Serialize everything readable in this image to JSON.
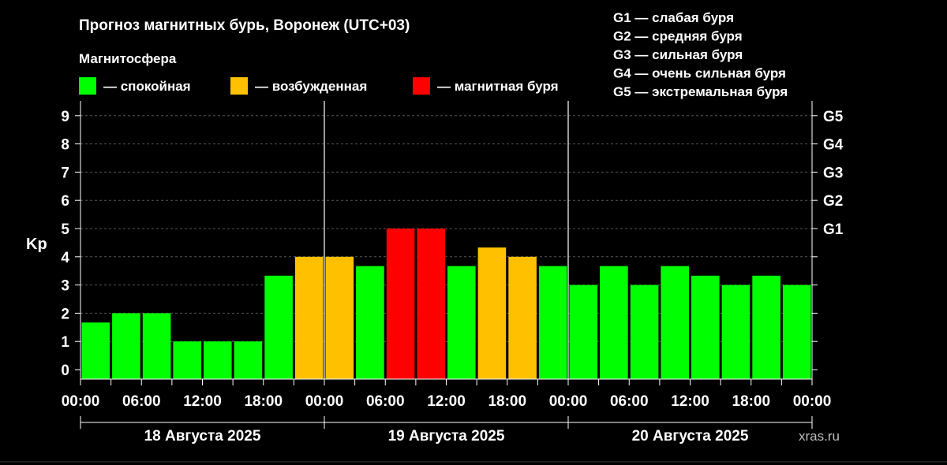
{
  "colors": {
    "quiet": "#00ff00",
    "active": "#ffc000",
    "storm": "#ff0000",
    "background": "#000000",
    "text": "#ffffff",
    "grid": "#555555"
  },
  "chart_data": {
    "type": "bar",
    "title": "Прогноз магнитных бурь, Воронеж (UTC+03)",
    "subtitle": "Магнитосфера",
    "ylabel": "Kp",
    "ylim": [
      0,
      9
    ],
    "yticks": [
      "0",
      "1",
      "2",
      "3",
      "4",
      "5",
      "6",
      "7",
      "8",
      "9"
    ],
    "right_axis_labels": [
      {
        "kp": 5,
        "label": "G1"
      },
      {
        "kp": 6,
        "label": "G2"
      },
      {
        "kp": 7,
        "label": "G3"
      },
      {
        "kp": 8,
        "label": "G4"
      },
      {
        "kp": 9,
        "label": "G5"
      }
    ],
    "legend": [
      {
        "color_key": "quiet",
        "label": "— спокойная"
      },
      {
        "color_key": "active",
        "label": "— возбужденная"
      },
      {
        "color_key": "storm",
        "label": "— магнитная буря"
      }
    ],
    "g_legend": [
      "G1 — слабая буря",
      "G2 — средняя буря",
      "G3 — сильная буря",
      "G4 — очень сильная буря",
      "G5 — экстремальная буря"
    ],
    "xtick_labels": [
      "00:00",
      "06:00",
      "12:00",
      "18:00",
      "00:00",
      "06:00",
      "12:00",
      "18:00",
      "00:00",
      "06:00",
      "12:00",
      "18:00",
      "00:00"
    ],
    "days": [
      "18 Августа 2025",
      "19 Августа 2025",
      "20 Августа 2025"
    ],
    "values": [
      1.67,
      2.0,
      2.0,
      1.0,
      1.0,
      1.0,
      3.33,
      4.0,
      4.0,
      3.67,
      5.0,
      5.0,
      3.67,
      4.33,
      4.0,
      3.67,
      3.0,
      3.67,
      3.0,
      3.67,
      3.33,
      3.0,
      3.33,
      3.0
    ],
    "levels": [
      "quiet",
      "quiet",
      "quiet",
      "quiet",
      "quiet",
      "quiet",
      "quiet",
      "active",
      "active",
      "quiet",
      "storm",
      "storm",
      "quiet",
      "active",
      "active",
      "quiet",
      "quiet",
      "quiet",
      "quiet",
      "quiet",
      "quiet",
      "quiet",
      "quiet",
      "quiet"
    ],
    "grid": true,
    "watermark": "xras.ru"
  }
}
